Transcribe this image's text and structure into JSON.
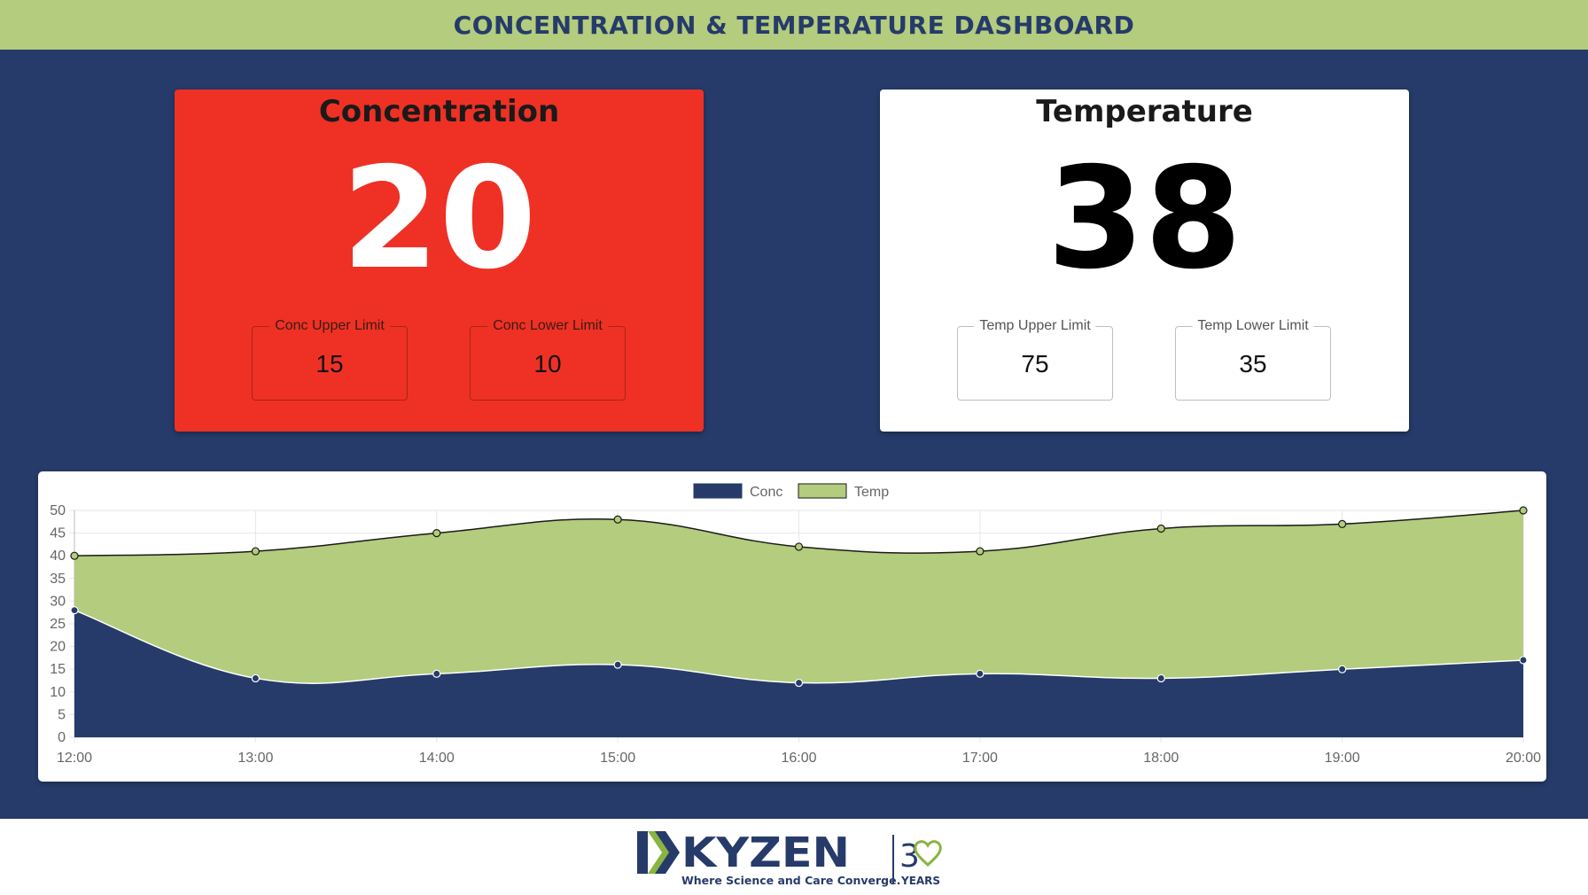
{
  "header": {
    "title": "CONCENTRATION & TEMPERATURE DASHBOARD"
  },
  "concentration": {
    "title": "Concentration",
    "value": "20",
    "upper_label": "Conc Upper Limit",
    "upper_value": "15",
    "lower_label": "Conc Lower Limit",
    "lower_value": "10",
    "status_color": "#ee3124"
  },
  "temperature": {
    "title": "Temperature",
    "value": "38",
    "upper_label": "Temp Upper Limit",
    "upper_value": "75",
    "lower_label": "Temp Lower Limit",
    "lower_value": "35",
    "status_color": "#ffffff"
  },
  "chart_data": {
    "type": "area",
    "categories": [
      "12:00",
      "13:00",
      "14:00",
      "15:00",
      "16:00",
      "17:00",
      "18:00",
      "19:00",
      "20:00"
    ],
    "series": [
      {
        "name": "Conc",
        "values": [
          28,
          13,
          14,
          16,
          12,
          14,
          13,
          15,
          17
        ],
        "color": "#263b6a"
      },
      {
        "name": "Temp",
        "values": [
          40,
          41,
          45,
          48,
          42,
          41,
          46,
          47,
          50
        ],
        "color": "#b3cc7d"
      }
    ],
    "yticks": [
      "0",
      "5",
      "10",
      "15",
      "20",
      "25",
      "30",
      "35",
      "40",
      "45",
      "50"
    ],
    "ylim": [
      0,
      50
    ],
    "grid": true,
    "legend": "top-center"
  },
  "footer": {
    "brand": "KYZEN",
    "tagline": "Where Science and Care Converge.",
    "anniversary_digit": "3",
    "anniversary_label": "YEARS",
    "brand_color": "#263b6a",
    "accent_color": "#8ab440"
  }
}
